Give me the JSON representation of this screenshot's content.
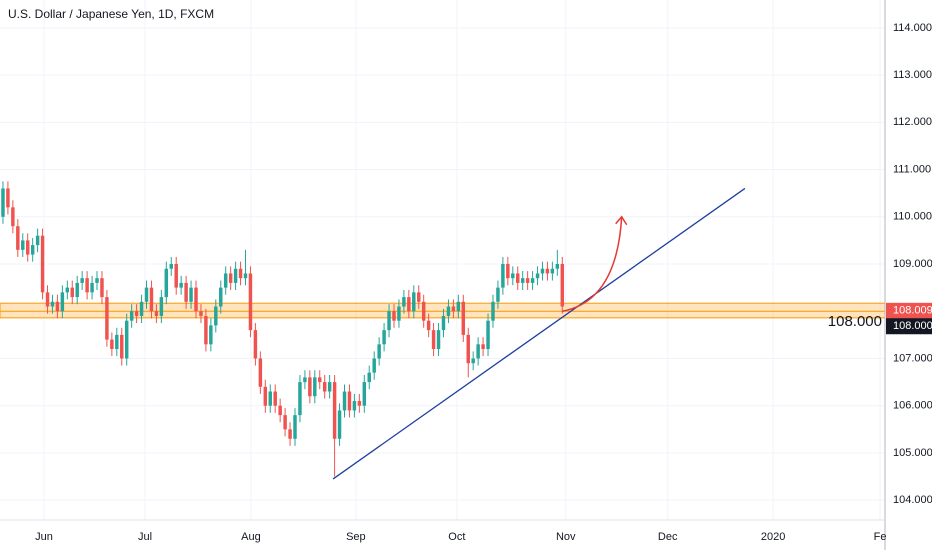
{
  "chart_data": {
    "type": "candlestick",
    "title": "U.S. Dollar / Japanese Yen, 1D, FXCM",
    "up_color": "#26a69a",
    "down_color": "#ef5350",
    "open": [
      110.0,
      110.6,
      110.2,
      109.8,
      109.3,
      109.5,
      109.2,
      109.4,
      109.6,
      108.4,
      108.1,
      108.2,
      108.0,
      108.4,
      108.5,
      108.3,
      108.6,
      108.7,
      108.4,
      108.6,
      108.7,
      108.3,
      107.4,
      107.2,
      107.5,
      107.0,
      107.8,
      108.0,
      107.9,
      108.2,
      108.5,
      108.0,
      107.9,
      108.3,
      108.9,
      109.0,
      108.5,
      108.6,
      108.2,
      108.5,
      108.0,
      107.9,
      107.3,
      107.7,
      108.1,
      108.5,
      108.8,
      108.6,
      108.9,
      108.7,
      108.8,
      107.6,
      107.0,
      106.4,
      106.0,
      106.3,
      106.0,
      105.8,
      105.5,
      105.3,
      105.8,
      106.5,
      106.6,
      106.2,
      106.6,
      106.5,
      106.3,
      106.5,
      105.3,
      105.9,
      106.3,
      105.9,
      106.1,
      106.0,
      106.5,
      106.7,
      107.0,
      107.3,
      107.6,
      108.0,
      107.8,
      108.1,
      108.3,
      108.0,
      108.4,
      108.2,
      107.8,
      107.6,
      107.2,
      107.6,
      107.9,
      108.1,
      108.0,
      108.2,
      107.5,
      106.9,
      107.0,
      107.3,
      107.2,
      107.8,
      108.2,
      108.5,
      109.0,
      108.7,
      108.8,
      108.6,
      108.7,
      108.6,
      108.7,
      108.8,
      108.9,
      108.8,
      108.9,
      109.0
    ],
    "high": [
      110.75,
      110.75,
      110.35,
      109.95,
      109.65,
      109.65,
      109.55,
      109.75,
      109.75,
      108.55,
      108.35,
      108.35,
      108.55,
      108.65,
      108.65,
      108.75,
      108.85,
      108.85,
      108.75,
      108.85,
      108.85,
      108.45,
      107.55,
      107.65,
      107.65,
      107.95,
      108.15,
      108.15,
      108.35,
      108.65,
      108.65,
      108.15,
      108.45,
      109.05,
      109.15,
      109.15,
      108.75,
      108.75,
      108.65,
      108.65,
      108.15,
      108.05,
      107.85,
      108.25,
      108.65,
      108.95,
      108.95,
      109.05,
      109.05,
      109.3,
      108.95,
      107.75,
      107.15,
      106.55,
      106.45,
      106.45,
      106.15,
      105.95,
      105.65,
      105.95,
      106.65,
      106.75,
      106.75,
      106.75,
      106.75,
      106.65,
      106.65,
      106.65,
      106.05,
      106.45,
      106.45,
      106.25,
      106.25,
      106.65,
      106.85,
      107.15,
      107.45,
      107.75,
      108.15,
      108.15,
      108.25,
      108.45,
      108.45,
      108.55,
      108.55,
      108.35,
      107.95,
      107.75,
      107.75,
      108.05,
      108.25,
      108.25,
      108.35,
      108.35,
      107.65,
      107.15,
      107.45,
      107.45,
      107.95,
      108.35,
      108.65,
      109.15,
      109.15,
      108.95,
      108.95,
      108.85,
      108.85,
      108.85,
      108.95,
      109.05,
      109.05,
      109.05,
      109.3,
      109.15
    ],
    "low": [
      109.85,
      110.05,
      109.65,
      109.15,
      109.15,
      109.05,
      109.05,
      109.25,
      108.25,
      107.95,
      107.95,
      107.85,
      107.85,
      108.25,
      108.15,
      108.15,
      108.45,
      108.25,
      108.25,
      108.45,
      108.15,
      107.25,
      107.05,
      107.05,
      106.85,
      106.85,
      107.65,
      107.75,
      107.75,
      108.05,
      107.85,
      107.75,
      107.75,
      108.15,
      108.75,
      108.35,
      108.35,
      108.05,
      108.05,
      107.85,
      107.75,
      107.15,
      107.15,
      107.55,
      107.95,
      108.35,
      108.45,
      108.45,
      108.55,
      108.55,
      107.45,
      106.85,
      106.25,
      105.85,
      105.85,
      105.85,
      105.65,
      105.35,
      105.15,
      105.15,
      105.65,
      106.35,
      106.05,
      106.05,
      106.35,
      106.15,
      106.15,
      104.5,
      105.15,
      105.75,
      105.75,
      105.75,
      105.85,
      105.85,
      106.35,
      106.55,
      106.85,
      107.15,
      107.45,
      107.65,
      107.65,
      107.95,
      107.85,
      107.85,
      108.05,
      107.65,
      107.45,
      107.05,
      107.05,
      107.45,
      107.75,
      107.85,
      107.85,
      107.35,
      106.6,
      106.75,
      106.85,
      107.05,
      107.05,
      107.65,
      108.05,
      108.35,
      108.55,
      108.55,
      108.45,
      108.45,
      108.45,
      108.45,
      108.55,
      108.65,
      108.65,
      108.65,
      108.75,
      107.95
    ],
    "close": [
      110.6,
      110.2,
      109.8,
      109.3,
      109.5,
      109.2,
      109.4,
      109.6,
      108.4,
      108.1,
      108.2,
      108.0,
      108.4,
      108.5,
      108.3,
      108.6,
      108.7,
      108.4,
      108.6,
      108.7,
      108.3,
      107.4,
      107.2,
      107.5,
      107.0,
      107.8,
      108.0,
      107.9,
      108.2,
      108.5,
      108.0,
      107.9,
      108.3,
      108.9,
      109.0,
      108.5,
      108.6,
      108.2,
      108.5,
      108.0,
      107.9,
      107.3,
      107.7,
      108.1,
      108.5,
      108.8,
      108.6,
      108.9,
      108.7,
      108.8,
      107.6,
      107.0,
      106.4,
      106.0,
      106.3,
      106.0,
      105.8,
      105.5,
      105.3,
      105.8,
      106.5,
      106.6,
      106.2,
      106.6,
      106.5,
      106.3,
      106.5,
      105.3,
      105.9,
      106.3,
      105.9,
      106.1,
      106.0,
      106.5,
      106.7,
      107.0,
      107.3,
      107.6,
      108.0,
      107.8,
      108.1,
      108.3,
      108.0,
      108.4,
      108.2,
      107.8,
      107.6,
      107.2,
      107.6,
      107.9,
      108.1,
      108.0,
      108.2,
      107.5,
      106.9,
      107.0,
      107.3,
      107.2,
      107.8,
      108.2,
      108.5,
      109.0,
      108.7,
      108.8,
      108.6,
      108.7,
      108.6,
      108.7,
      108.8,
      108.9,
      108.8,
      108.9,
      109.0,
      108.1
    ],
    "xlim": [
      -0.6,
      178.2
    ],
    "xticks": [
      {
        "value": 8.3,
        "label": "Jun"
      },
      {
        "value": 28.7,
        "label": "Jul"
      },
      {
        "value": 50.1,
        "label": "Aug"
      },
      {
        "value": 71.3,
        "label": "Sep"
      },
      {
        "value": 91.7,
        "label": "Oct"
      },
      {
        "value": 113.7,
        "label": "Nov"
      },
      {
        "value": 134.3,
        "label": "Dec"
      },
      {
        "value": 155.6,
        "label": "2020"
      },
      {
        "value": 177.2,
        "label": "Fe"
      }
    ],
    "ylim": [
      103.58,
      114.59
    ],
    "yticks": [
      {
        "value": 104,
        "label": "104.000"
      },
      {
        "value": 105,
        "label": "105.000"
      },
      {
        "value": 106,
        "label": "106.000"
      },
      {
        "value": 107,
        "label": "107.000"
      },
      {
        "value": 108,
        "label": "108.000"
      },
      {
        "value": 109,
        "label": "109.000"
      },
      {
        "value": 110,
        "label": "110.000"
      },
      {
        "value": 111,
        "label": "111.000"
      },
      {
        "value": 112,
        "label": "112.000"
      },
      {
        "value": 113,
        "label": "113.000"
      },
      {
        "value": 114,
        "label": "114.000"
      }
    ],
    "grid": true,
    "zone": [
      107.86,
      108.17
    ],
    "trendline": {
      "x": [
        66.7,
        149.9
      ],
      "y": [
        104.45,
        110.6
      ],
      "color": "#1e3fa0"
    },
    "arrow": {
      "x": [
        113,
        125
      ],
      "y": [
        108.0,
        110.0
      ],
      "color": "#e53935"
    },
    "last_price": 108.009,
    "level": {
      "value": 108,
      "label": "108.000"
    }
  }
}
